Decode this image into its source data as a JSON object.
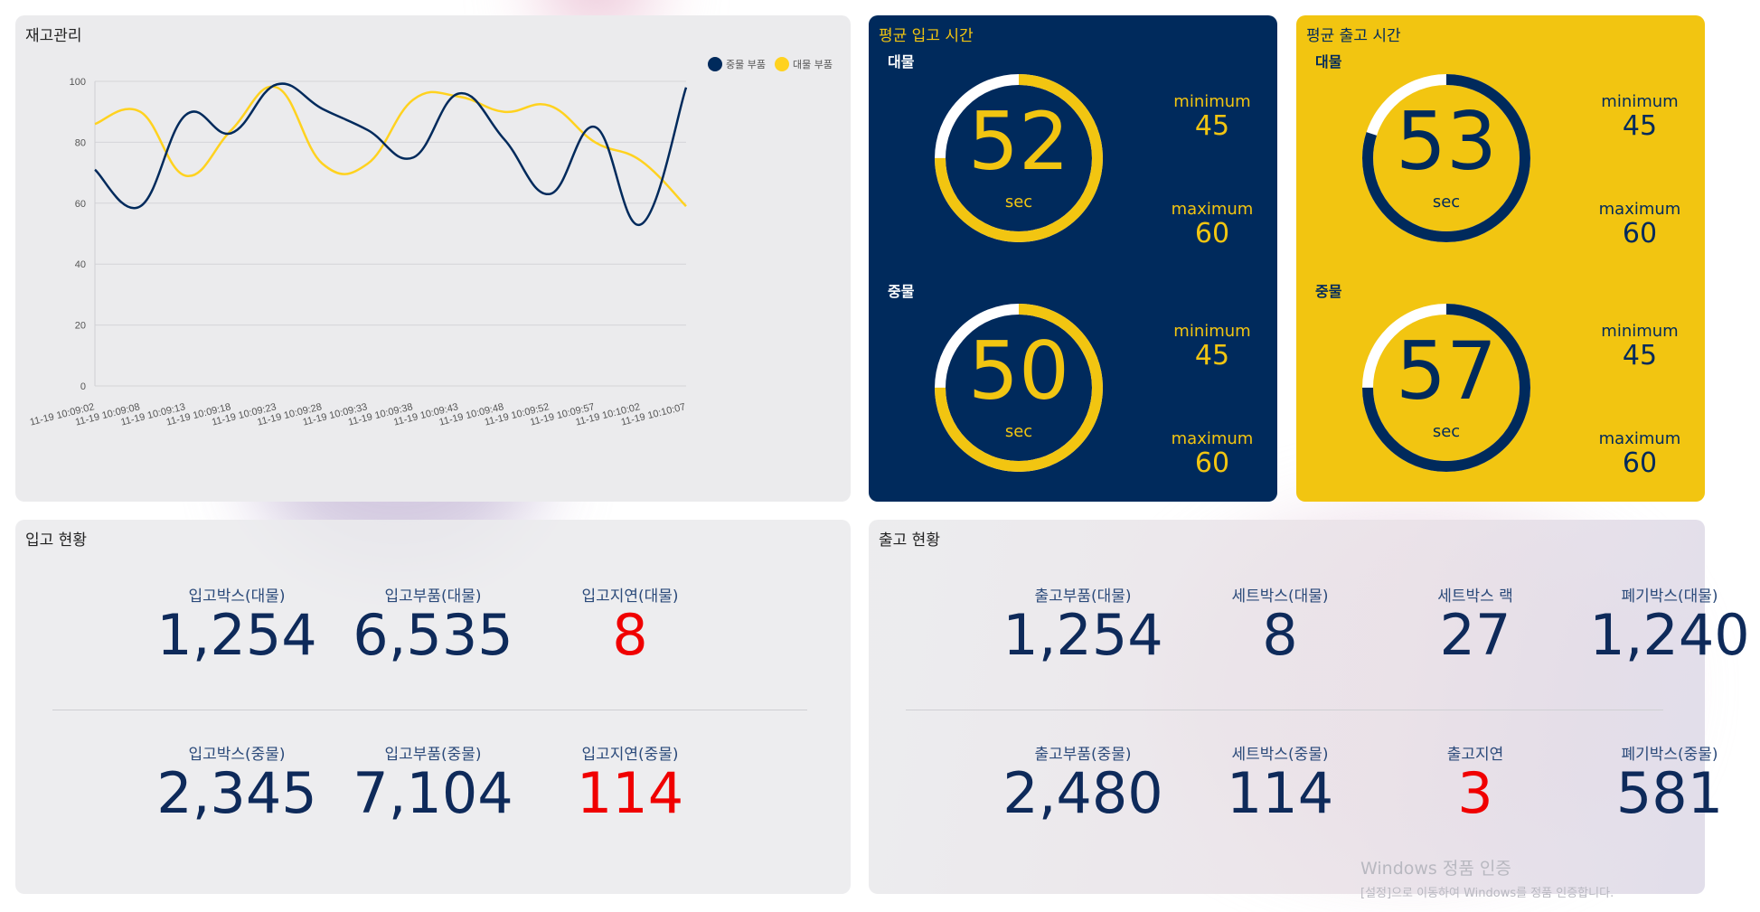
{
  "inventory": {
    "title": "재고관리",
    "legend": [
      {
        "label": "중물 부품",
        "color": "#002a5c"
      },
      {
        "label": "대물 부품",
        "color": "#ffd21f"
      }
    ],
    "chart_data": {
      "type": "line",
      "title": "재고관리",
      "ylim": [
        0,
        100
      ],
      "yticks": [
        0,
        20,
        40,
        60,
        80,
        100
      ],
      "categories": [
        "11-19 10:09:02",
        "11-19 10:09:08",
        "11-19 10:09:13",
        "11-19 10:09:18",
        "11-19 10:09:23",
        "11-19 10:09:28",
        "11-19 10:09:33",
        "11-19 10:09:38",
        "11-19 10:09:43",
        "11-19 10:09:48",
        "11-19 10:09:52",
        "11-19 10:09:57",
        "11-19 10:10:02",
        "11-19 10:10:07"
      ],
      "series": [
        {
          "name": "중물 부품",
          "color": "#002a5c",
          "values": [
            71,
            59,
            89,
            83,
            99,
            91,
            84,
            75,
            96,
            81,
            63,
            85,
            53,
            98
          ]
        },
        {
          "name": "대물 부품",
          "color": "#ffd21f",
          "values": [
            86,
            90,
            69,
            84,
            98,
            73,
            73,
            94,
            95,
            90,
            92,
            80,
            74,
            59
          ]
        }
      ]
    }
  },
  "inbound_time": {
    "title": "평균 입고 시간",
    "gauges": [
      {
        "label": "대물",
        "value": "52",
        "unit": "sec",
        "min_label": "minimum",
        "min": "45",
        "max_label": "maximum",
        "max": "60",
        "fill": 0.75
      },
      {
        "label": "중물",
        "value": "50",
        "unit": "sec",
        "min_label": "minimum",
        "min": "45",
        "max_label": "maximum",
        "max": "60",
        "fill": 0.75
      }
    ]
  },
  "outbound_time": {
    "title": "평균 출고 시간",
    "gauges": [
      {
        "label": "대물",
        "value": "53",
        "unit": "sec",
        "min_label": "minimum",
        "min": "45",
        "max_label": "maximum",
        "max": "60",
        "fill": 0.8
      },
      {
        "label": "중물",
        "value": "57",
        "unit": "sec",
        "min_label": "minimum",
        "min": "45",
        "max_label": "maximum",
        "max": "60",
        "fill": 0.75
      }
    ]
  },
  "inbound_status": {
    "title": "입고 현황",
    "rows": [
      [
        {
          "label": "입고박스(대물)",
          "value": "1,254",
          "alert": false
        },
        {
          "label": "입고부품(대물)",
          "value": "6,535",
          "alert": false
        },
        {
          "label": "입고지연(대물)",
          "value": "8",
          "alert": true
        }
      ],
      [
        {
          "label": "입고박스(중물)",
          "value": "2,345",
          "alert": false
        },
        {
          "label": "입고부품(중물)",
          "value": "7,104",
          "alert": false
        },
        {
          "label": "입고지연(중물)",
          "value": "114",
          "alert": true
        }
      ]
    ]
  },
  "outbound_status": {
    "title": "출고 현황",
    "rows": [
      [
        {
          "label": "출고부품(대물)",
          "value": "1,254",
          "alert": false
        },
        {
          "label": "세트박스(대물)",
          "value": "8",
          "alert": false
        },
        {
          "label": "세트박스 랙",
          "value": "27",
          "alert": false
        },
        {
          "label": "폐기박스(대물)",
          "value": "1,240",
          "alert": false
        }
      ],
      [
        {
          "label": "출고부품(중물)",
          "value": "2,480",
          "alert": false
        },
        {
          "label": "세트박스(중물)",
          "value": "114",
          "alert": false
        },
        {
          "label": "출고지연",
          "value": "3",
          "alert": true
        },
        {
          "label": "폐기박스(중물)",
          "value": "581",
          "alert": false
        }
      ]
    ]
  },
  "watermark": {
    "line1": "Windows 정품 인증",
    "line2": "[설정]으로 이동하여 Windows를 정품 인증합니다."
  }
}
